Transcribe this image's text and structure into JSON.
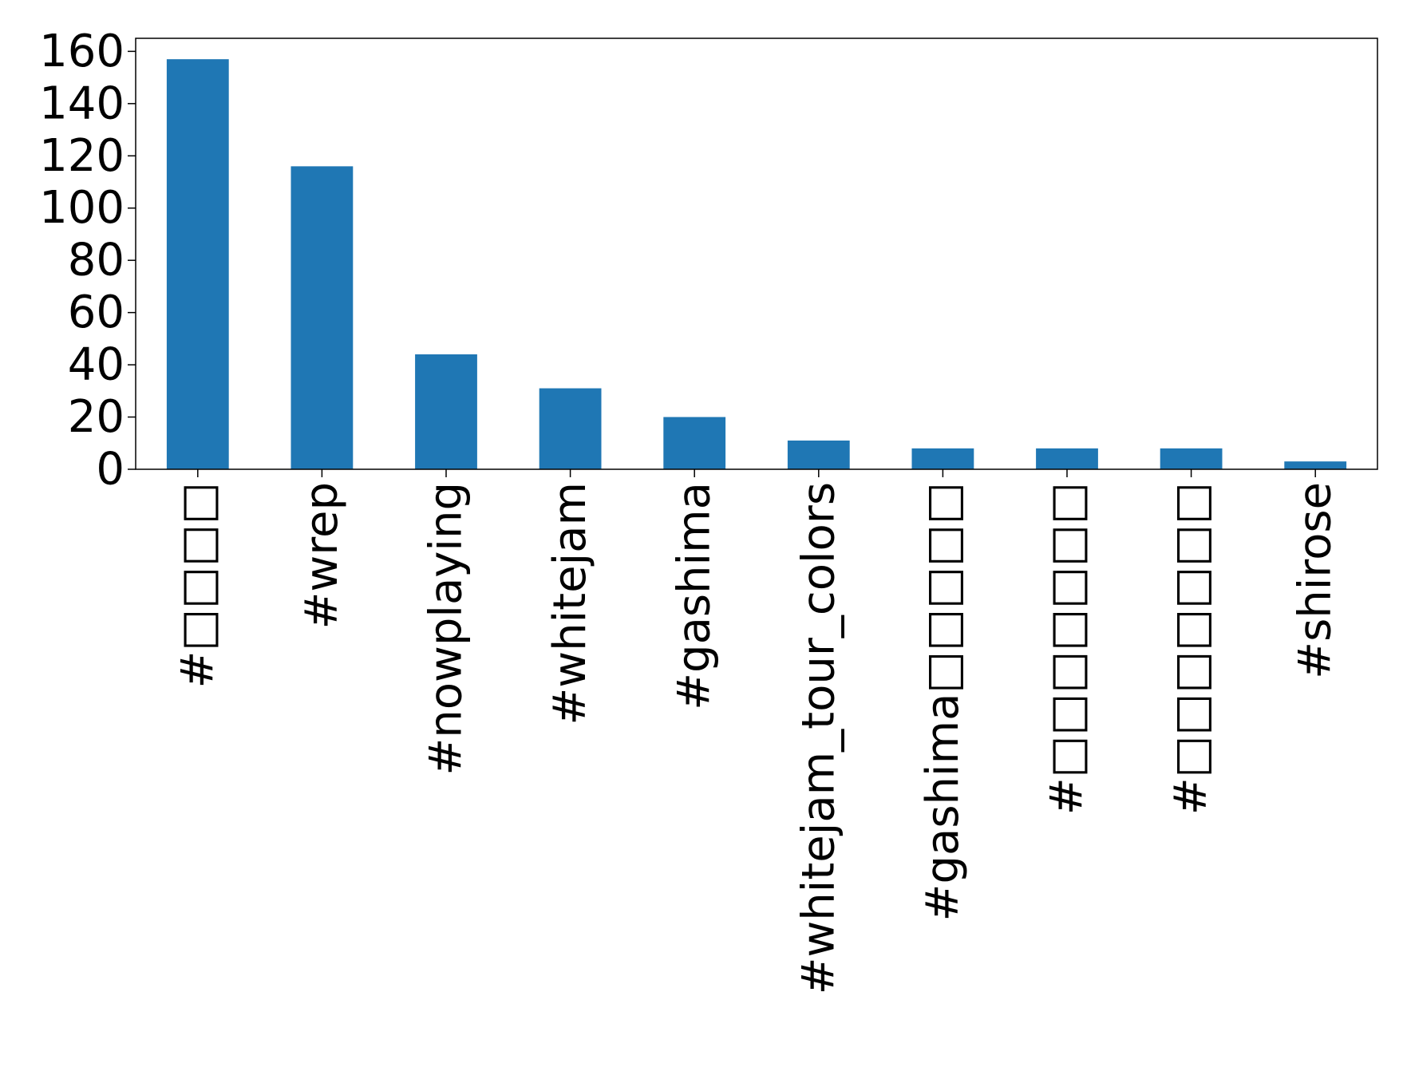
{
  "chart_data": {
    "type": "bar",
    "title": "",
    "xlabel": "",
    "ylabel": "",
    "categories": [
      "#□□□□",
      "#wrep",
      "#nowplaying",
      "#whitejam",
      "#gashima",
      "#whitejam_tour_colors",
      "#gashima□□□□□",
      "#□□□□□□□",
      "#□□□□□□□",
      "#shirose"
    ],
    "values": [
      157,
      116,
      44,
      31,
      20,
      11,
      8,
      8,
      8,
      3
    ],
    "ylim": [
      0,
      165
    ],
    "yticks": [
      0,
      20,
      40,
      60,
      80,
      100,
      120,
      140,
      160
    ],
    "bar_color": "#1f77b4",
    "grid": false,
    "legend": "none",
    "xtick_rotation": "vertical"
  }
}
